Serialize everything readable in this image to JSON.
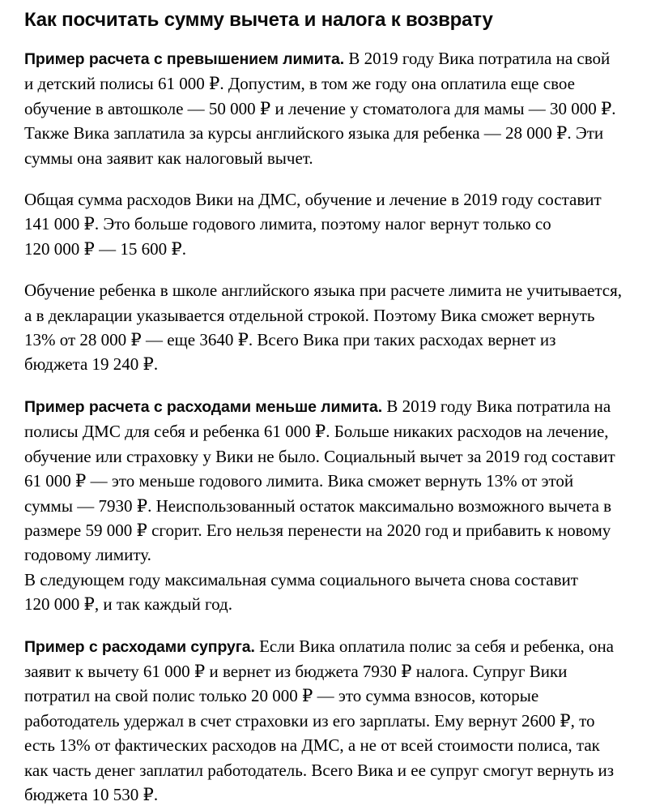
{
  "article": {
    "title": "Как посчитать сумму вычета и налога к возврату",
    "paragraphs": [
      {
        "lead": "Пример расчета с превышением лимита.",
        "text": "В 2019 году Вика потратила на свой и детский полисы 61 000 ₽. Допустим, в том же году она оплатила еще свое обучение в автошколе — 50 000 ₽ и лечение у стоматолога для мамы — 30 000 ₽. Также Вика заплатила за курсы английского языка для ребенка — 28 000 ₽. Эти суммы она заявит как налоговый вычет."
      },
      {
        "lead": "",
        "text": "Общая сумма расходов Вики на ДМС, обучение и лечение в 2019 году составит 141 000 ₽. Это больше годового лимита, поэтому налог вернут только со 120 000 ₽ — 15 600 ₽."
      },
      {
        "lead": "",
        "text": "Обучение ребенка в школе английского языка при расчете лимита не учитывается, а в декларации указывается отдельной строкой. Поэтому Вика сможет вернуть 13% от 28 000 ₽ — еще 3640 ₽. Всего Вика при таких расходах вернет из бюджета 19 240 ₽."
      },
      {
        "lead": "Пример расчета с расходами меньше лимита.",
        "text": "В 2019 году Вика потратила на полисы ДМС для себя и ребенка 61 000 ₽. Больше никаких расходов на лечение, обучение или страховку у Вики не было. Социальный вычет за 2019 год составит 61 000 ₽ — это меньше годового лимита. Вика сможет вернуть 13% от этой суммы — 7930 ₽. Неиспользованный остаток максимально возможного вычета в размере 59 000 ₽ сгорит. Его нельзя перенести на 2020 год и прибавить к новому годовому лимиту.",
        "text2": "В следующем году максимальная сумма социального вычета снова составит 120 000 ₽, и так каждый год."
      },
      {
        "lead": "Пример с расходами супруга.",
        "text": "Если Вика оплатила полис за себя и ребенка, она заявит к вычету 61 000 ₽ и вернет из бюджета 7930 ₽ налога. Супруг Вики потратил на свой полис только 20 000 ₽ — это сумма взносов, которые работодатель удержал в счет страховки из его зарплаты. Ему вернут 2600 ₽, то есть 13% от фактических расходов на ДМС, а не от всей стоимости полиса, так как часть денег заплатил работодатель. Всего Вика и ее супруг смогут вернуть из бюджета 10 530 ₽."
      }
    ]
  }
}
